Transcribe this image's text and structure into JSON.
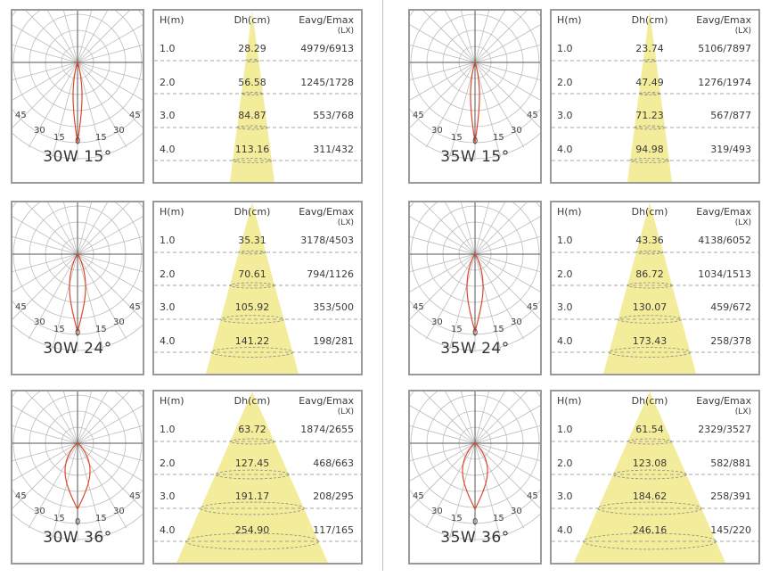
{
  "headers": {
    "h": "H(m)",
    "dh": "Dh(cm)",
    "e": "Eavg/Emax",
    "unit": "(LX)"
  },
  "angle_labels": {
    "a45": "45",
    "a30": "30",
    "a15": "15",
    "a0": "0"
  },
  "colors": {
    "beam": "#f3ec9a",
    "curve": "#d9482b",
    "grid": "#bdbdbd",
    "border": "#9a9a9a"
  },
  "panels": [
    {
      "title": "30W 15°",
      "beam_angle": 15,
      "heights": [
        "1.0",
        "2.0",
        "3.0",
        "4.0"
      ],
      "dh": [
        "28.29",
        "56.58",
        "84.87",
        "113.16"
      ],
      "e": [
        "4979/6913",
        "1245/1728",
        "553/768",
        "311/432"
      ]
    },
    {
      "title": "35W 15°",
      "beam_angle": 15,
      "heights": [
        "1.0",
        "2.0",
        "3.0",
        "4.0"
      ],
      "dh": [
        "23.74",
        "47.49",
        "71.23",
        "94.98"
      ],
      "e": [
        "5106/7897",
        "1276/1974",
        "567/877",
        "319/493"
      ]
    },
    {
      "title": "30W 24°",
      "beam_angle": 24,
      "heights": [
        "1.0",
        "2.0",
        "3.0",
        "4.0"
      ],
      "dh": [
        "35.31",
        "70.61",
        "105.92",
        "141.22"
      ],
      "e": [
        "3178/4503",
        "794/1126",
        "353/500",
        "198/281"
      ]
    },
    {
      "title": "35W 24°",
      "beam_angle": 24,
      "heights": [
        "1.0",
        "2.0",
        "3.0",
        "4.0"
      ],
      "dh": [
        "43.36",
        "86.72",
        "130.07",
        "173.43"
      ],
      "e": [
        "4138/6052",
        "1034/1513",
        "459/672",
        "258/378"
      ]
    },
    {
      "title": "30W 36°",
      "beam_angle": 36,
      "heights": [
        "1.0",
        "2.0",
        "3.0",
        "4.0"
      ],
      "dh": [
        "63.72",
        "127.45",
        "191.17",
        "254.90"
      ],
      "e": [
        "1874/2655",
        "468/663",
        "208/295",
        "117/165"
      ]
    },
    {
      "title": "35W 36°",
      "beam_angle": 36,
      "heights": [
        "1.0",
        "2.0",
        "3.0",
        "4.0"
      ],
      "dh": [
        "61.54",
        "123.08",
        "184.62",
        "246.16"
      ],
      "e": [
        "2329/3527",
        "582/881",
        "258/391",
        "145/220"
      ]
    }
  ]
}
